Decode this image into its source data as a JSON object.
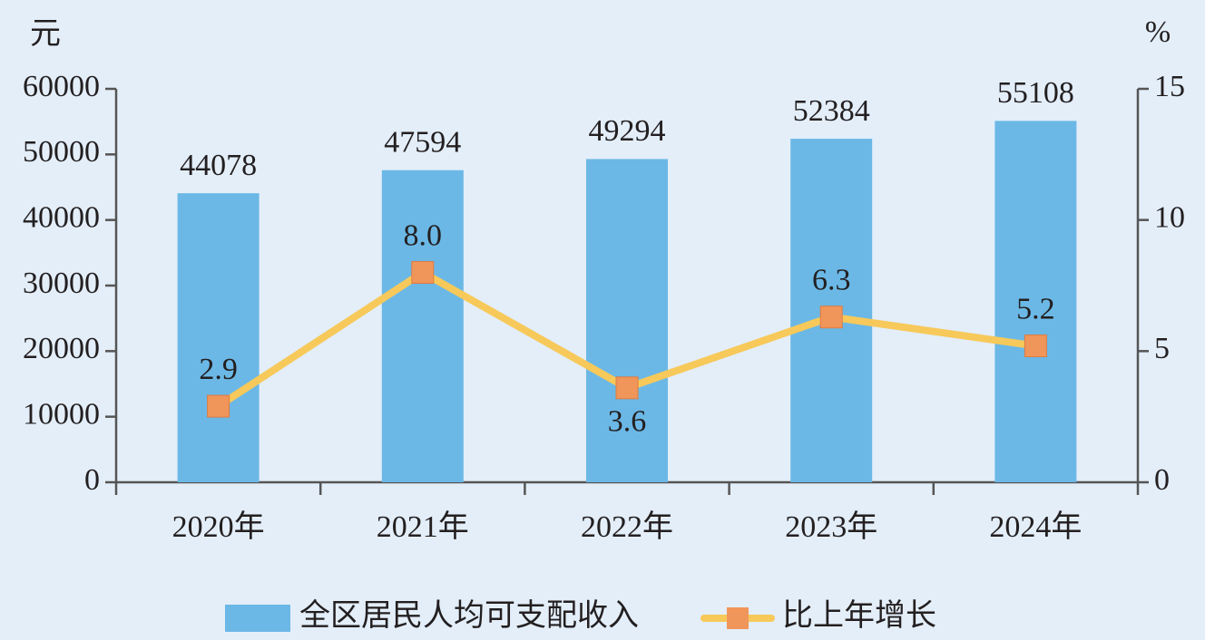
{
  "chart_data": {
    "type": "bar",
    "y_unit": "元",
    "y2_unit": "%",
    "categories": [
      "2020年",
      "2021年",
      "2022年",
      "2023年",
      "2024年"
    ],
    "series": [
      {
        "name": "全区居民人均可支配收入",
        "type": "bar",
        "color": "#6bb8e6",
        "values": [
          44078,
          47594,
          49294,
          52384,
          55108
        ]
      },
      {
        "name": "比上年增长",
        "type": "line",
        "axis": "y2",
        "color": "#f7c95a",
        "marker_color": "#f0965a",
        "values": [
          2.9,
          8.0,
          3.6,
          6.3,
          5.2
        ],
        "value_labels": [
          "2.9",
          "8.0",
          "3.6",
          "6.3",
          "5.2"
        ]
      }
    ],
    "ylim": [
      0,
      60000
    ],
    "yticks": [
      0,
      10000,
      20000,
      30000,
      40000,
      50000,
      60000
    ],
    "y2lim": [
      0,
      15
    ],
    "y2ticks": [
      0,
      5,
      10,
      15
    ],
    "legend": "bottom"
  }
}
